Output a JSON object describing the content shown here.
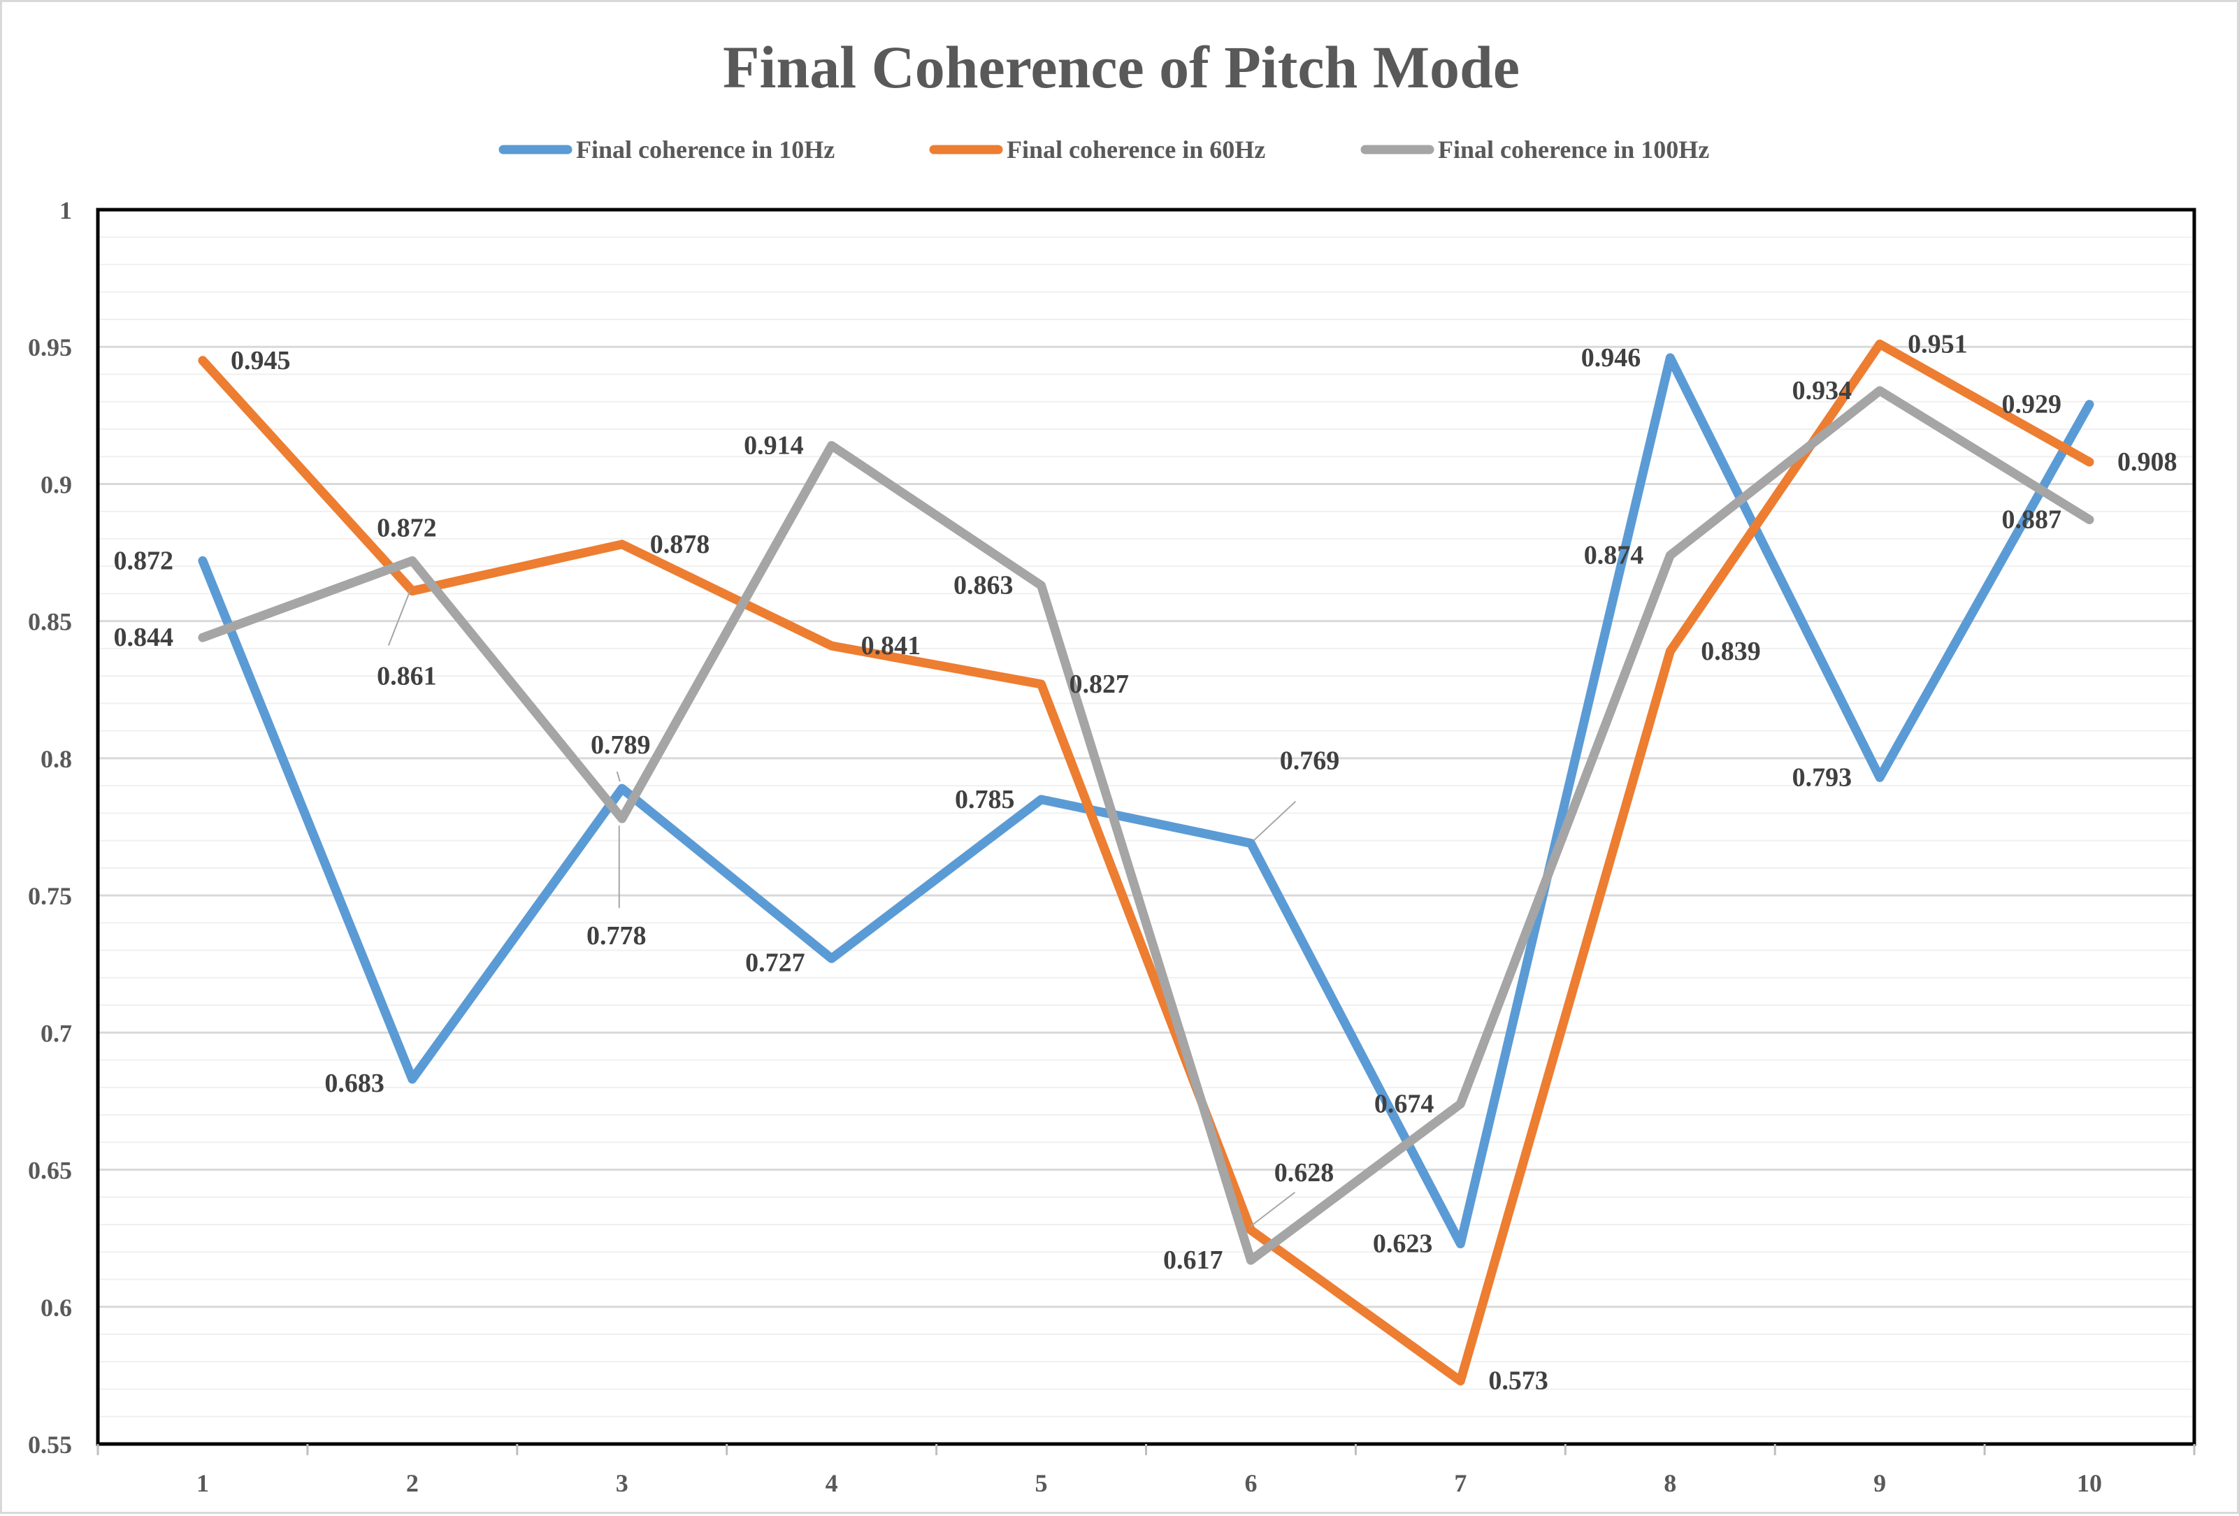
{
  "chart_data": {
    "type": "line",
    "title": "Final Coherence of Pitch Mode",
    "xlabel": "",
    "ylabel": "",
    "categories": [
      "1",
      "2",
      "3",
      "4",
      "5",
      "6",
      "7",
      "8",
      "9",
      "10"
    ],
    "ylim": [
      0.55,
      1
    ],
    "yticks": [
      0.55,
      0.6,
      0.65,
      0.7,
      0.75,
      0.8,
      0.85,
      0.9,
      0.95,
      1
    ],
    "ytick_labels": [
      "0.55",
      "0.6",
      "0.65",
      "0.7",
      "0.75",
      "0.8",
      "0.85",
      "0.9",
      "0.95",
      "1"
    ],
    "grid": true,
    "legend_position": "top",
    "series": [
      {
        "name": "Final coherence in 10Hz",
        "color": "#5b9bd5",
        "values": [
          0.872,
          0.683,
          0.789,
          0.727,
          0.785,
          0.769,
          0.623,
          0.946,
          0.793,
          0.929
        ],
        "labels": [
          "0.872",
          "0.683",
          "0.789",
          "0.727",
          "0.785",
          "0.769",
          "0.623",
          "0.946",
          "0.793",
          "0.929"
        ]
      },
      {
        "name": "Final coherence in 60Hz",
        "color": "#ed7d31",
        "values": [
          0.945,
          0.861,
          0.878,
          0.841,
          0.827,
          0.628,
          0.573,
          0.839,
          0.951,
          0.908
        ],
        "labels": [
          "0.945",
          "0.861",
          "0.878",
          "0.841",
          "0.827",
          "0.628",
          "0.573",
          "0.839",
          "0.951",
          "0.908"
        ]
      },
      {
        "name": "Final coherence in 100Hz",
        "color": "#a5a5a5",
        "values": [
          0.844,
          0.872,
          0.778,
          0.914,
          0.863,
          0.617,
          0.674,
          0.874,
          0.934,
          0.887
        ],
        "labels": [
          "0.844",
          "0.872",
          "0.778",
          "0.914",
          "0.863",
          "0.617",
          "0.674",
          "0.874",
          "0.934",
          "0.887"
        ]
      }
    ]
  }
}
